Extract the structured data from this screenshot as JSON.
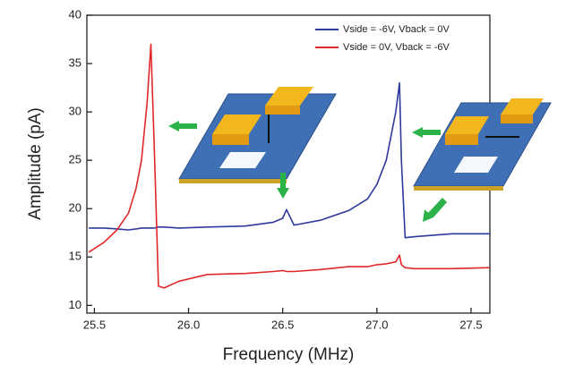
{
  "chart_data": {
    "type": "line",
    "x_label": "Frequency (MHz)",
    "y_label": "Amplitude (pA)",
    "x": [
      25.47,
      25.55,
      25.62,
      25.68,
      25.72,
      25.75,
      25.78,
      25.8,
      25.82,
      25.84,
      25.87,
      25.95,
      26.1,
      26.3,
      26.45,
      26.5,
      26.52,
      26.56,
      26.7,
      26.85,
      26.95,
      27.0,
      27.05,
      27.1,
      27.12,
      27.13,
      27.15,
      27.2,
      27.4,
      27.6
    ],
    "series": [
      {
        "name": "Vside = -6V, Vback = 0V",
        "color": "#2e3a9c",
        "values": [
          18,
          18,
          17.9,
          17.8,
          17.9,
          18,
          18,
          18,
          18,
          18.1,
          18.1,
          18,
          18.1,
          18.2,
          18.6,
          19,
          19.9,
          18.3,
          18.8,
          19.8,
          21,
          22.5,
          25,
          30,
          33,
          25,
          17,
          17.1,
          17.4,
          17.4
        ]
      },
      {
        "name": "Vside = 0V, Vback = -6V",
        "color": "#e0282a",
        "values": [
          15.5,
          16.5,
          17.8,
          19.5,
          22,
          25,
          31,
          37,
          25,
          12,
          11.8,
          12.5,
          13.2,
          13.3,
          13.5,
          13.6,
          13.5,
          13.5,
          13.7,
          14,
          14,
          14.2,
          14.3,
          14.5,
          15.2,
          14.2,
          13.9,
          13.8,
          13.8,
          13.9
        ]
      }
    ],
    "xlim": [
      25.46,
      27.6
    ],
    "xticks": [
      {
        "value": 25.5,
        "label": "25.5"
      },
      {
        "value": 26.0,
        "label": "26.0"
      },
      {
        "value": 26.5,
        "label": "26.5"
      },
      {
        "value": 27.0,
        "label": "27.0"
      },
      {
        "value": 27.5,
        "label": "27.5"
      }
    ],
    "ylim": [
      9.2,
      40
    ],
    "yticks": [
      10,
      15,
      20,
      25,
      30,
      35,
      40
    ],
    "legend": "upper-right"
  }
}
